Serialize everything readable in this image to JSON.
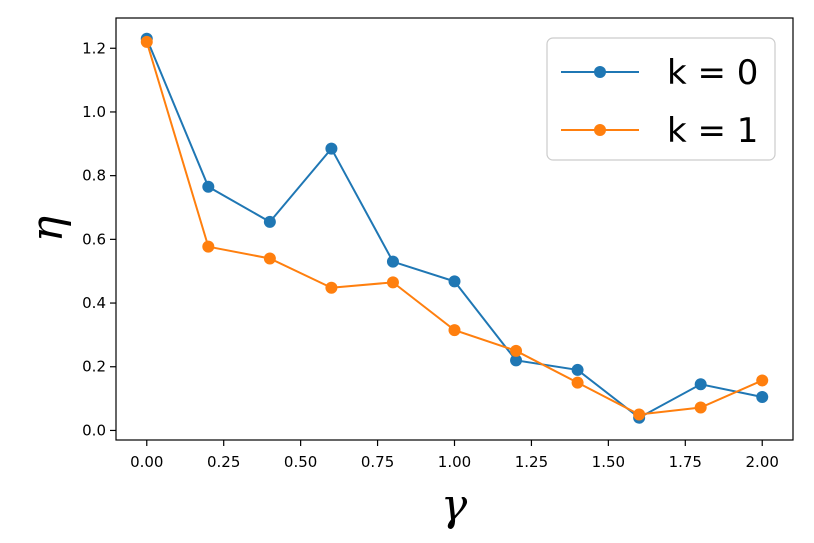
{
  "chart_data": {
    "type": "line",
    "xlabel": "γ",
    "ylabel": "η",
    "xlim": [
      -0.1,
      2.1
    ],
    "ylim": [
      -0.03,
      1.295
    ],
    "xticks": [
      0.0,
      0.25,
      0.5,
      0.75,
      1.0,
      1.25,
      1.5,
      1.75,
      2.0
    ],
    "xtick_labels": [
      "0.00",
      "0.25",
      "0.50",
      "0.75",
      "1.00",
      "1.25",
      "1.50",
      "1.75",
      "2.00"
    ],
    "yticks": [
      0.0,
      0.2,
      0.4,
      0.6,
      0.8,
      1.0,
      1.2
    ],
    "ytick_labels": [
      "0.0",
      "0.2",
      "0.4",
      "0.6",
      "0.8",
      "1.0",
      "1.2"
    ],
    "x": [
      0.0,
      0.2,
      0.4,
      0.6,
      0.8,
      1.0,
      1.2,
      1.4,
      1.6,
      1.8,
      2.0
    ],
    "series": [
      {
        "name": "k = 0",
        "color": "#1f77b4",
        "values": [
          1.23,
          0.765,
          0.655,
          0.885,
          0.53,
          0.468,
          0.22,
          0.19,
          0.04,
          0.145,
          0.105
        ]
      },
      {
        "name": "k = 1",
        "color": "#ff7f0e",
        "values": [
          1.22,
          0.577,
          0.54,
          0.448,
          0.465,
          0.315,
          0.25,
          0.15,
          0.05,
          0.072,
          0.157
        ]
      }
    ],
    "legend": "top-right",
    "grid": false
  }
}
